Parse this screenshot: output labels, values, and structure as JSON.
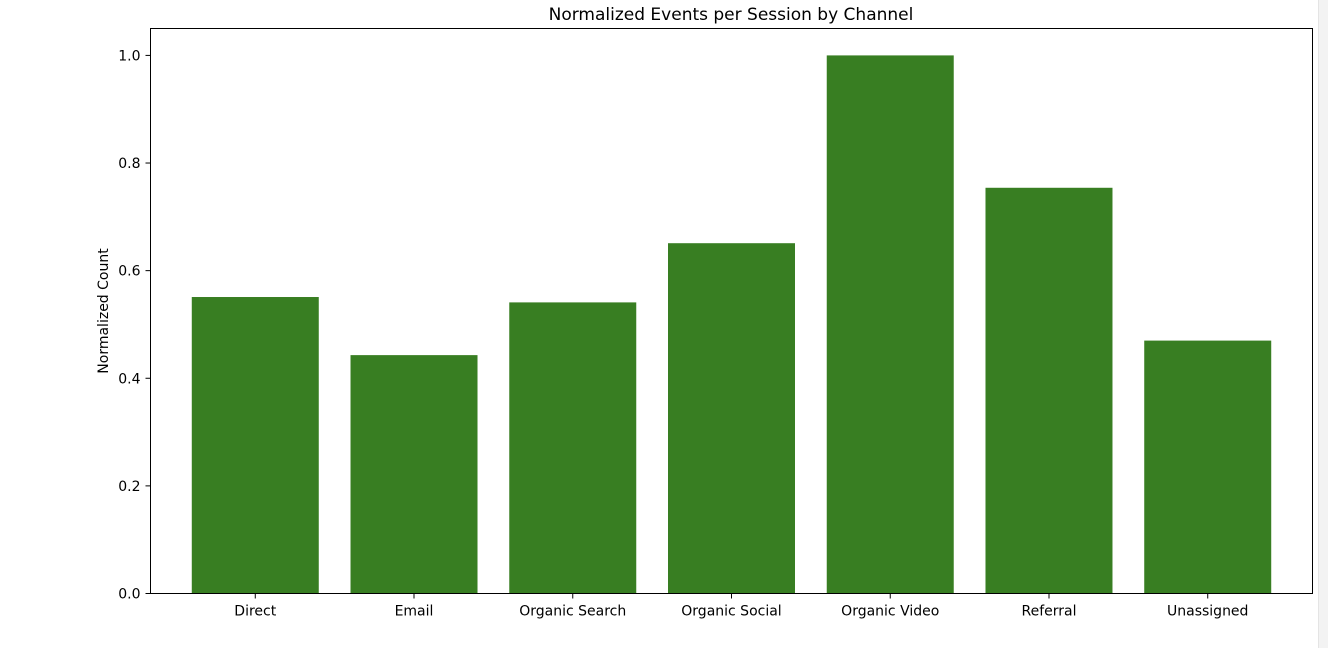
{
  "chart_data": {
    "type": "bar",
    "title": "Normalized Events per Session by Channel",
    "xlabel": "",
    "ylabel": "Normalized Count",
    "categories": [
      "Direct",
      "Email",
      "Organic Search",
      "Organic Social",
      "Organic Video",
      "Referral",
      "Unassigned"
    ],
    "values": [
      0.551,
      0.443,
      0.541,
      0.651,
      1.0,
      0.754,
      0.47
    ],
    "ylim": [
      0,
      1.05
    ],
    "yticks": [
      "0.0",
      "0.2",
      "0.4",
      "0.6",
      "0.8",
      "1.0"
    ],
    "bar_color": "#387e22",
    "grid": false,
    "legend": "none"
  }
}
